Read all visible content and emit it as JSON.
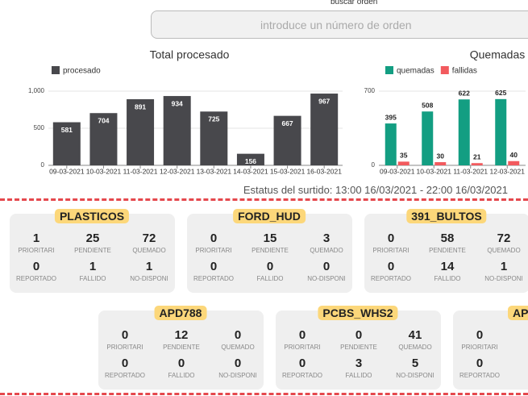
{
  "search": {
    "label": "buscar orden",
    "placeholder": "introduce un número de orden"
  },
  "chart_data": [
    {
      "type": "bar",
      "title": "Total procesado",
      "categories": [
        "09-03-2021",
        "10-03-2021",
        "11-03-2021",
        "12-03-2021",
        "13-03-2021",
        "14-03-2021",
        "15-03-2021",
        "16-03-2021"
      ],
      "series": [
        {
          "name": "procesado",
          "color": "#48484c",
          "values": [
            581,
            704,
            891,
            934,
            725,
            156,
            667,
            967
          ]
        }
      ],
      "ylim": [
        0,
        1000
      ],
      "yticks": [
        0,
        500,
        {
          "value": 1000,
          "label": "1,000"
        }
      ],
      "grid": true
    },
    {
      "type": "bar",
      "title": "Quemadas",
      "categories": [
        "09-03-2021",
        "10-03-2021",
        "11-03-2021",
        "12-03-2021"
      ],
      "series": [
        {
          "name": "quemadas",
          "color": "#139e82",
          "values": [
            395,
            508,
            622,
            625
          ]
        },
        {
          "name": "fallidas",
          "color": "#f25a5e",
          "values": [
            35,
            30,
            21,
            40
          ]
        }
      ],
      "ylim": [
        0,
        700
      ],
      "yticks": [
        0,
        700
      ],
      "grid": true
    }
  ],
  "status": "Estatus del surtido: 13:00 16/03/2021 - 22:00 16/03/2021",
  "cards": [
    {
      "name": "PLASTICOS",
      "rows": [
        [
          {
            "label": "PRIORITARI",
            "value": 1
          },
          {
            "label": "PENDIENTE",
            "value": 25
          },
          {
            "label": "QUEMADO",
            "value": 72
          }
        ],
        [
          {
            "label": "REPORTADO",
            "value": 0
          },
          {
            "label": "FALLIDO",
            "value": 1
          },
          {
            "label": "NO-DISPONI",
            "value": 1
          }
        ]
      ]
    },
    {
      "name": "FORD_HUD",
      "rows": [
        [
          {
            "label": "PRIORITARI",
            "value": 0
          },
          {
            "label": "PENDIENTE",
            "value": 15
          },
          {
            "label": "QUEMADO",
            "value": 3
          }
        ],
        [
          {
            "label": "REPORTADO",
            "value": 0
          },
          {
            "label": "FALLIDO",
            "value": 0
          },
          {
            "label": "NO-DISPONI",
            "value": 0
          }
        ]
      ]
    },
    {
      "name": "391_BULTOS",
      "rows": [
        [
          {
            "label": "PRIORITARI",
            "value": 0
          },
          {
            "label": "PENDIENTE",
            "value": 58
          },
          {
            "label": "QUEMADO",
            "value": 72
          }
        ],
        [
          {
            "label": "REPORTADO",
            "value": 0
          },
          {
            "label": "FALLIDO",
            "value": 14
          },
          {
            "label": "NO-DISPONI",
            "value": 1
          }
        ]
      ]
    },
    {
      "name": "APD788",
      "rows": [
        [
          {
            "label": "PRIORITARI",
            "value": 0
          },
          {
            "label": "PENDIENTE",
            "value": 12
          },
          {
            "label": "QUEMADO",
            "value": 0
          }
        ],
        [
          {
            "label": "REPORTADO",
            "value": 0
          },
          {
            "label": "FALLIDO",
            "value": 0
          },
          {
            "label": "NO-DISPONI",
            "value": 0
          }
        ]
      ]
    },
    {
      "name": "PCBS_WHS2",
      "rows": [
        [
          {
            "label": "PRIORITARI",
            "value": 0
          },
          {
            "label": "PENDIENTE",
            "value": 0
          },
          {
            "label": "QUEMADO",
            "value": 41
          }
        ],
        [
          {
            "label": "REPORTADO",
            "value": 0
          },
          {
            "label": "FALLIDO",
            "value": 3
          },
          {
            "label": "NO-DISPONI",
            "value": 5
          }
        ]
      ]
    },
    {
      "name": "AP",
      "rows": [
        [
          {
            "label": "PRIORITARI",
            "value": 0
          }
        ],
        [
          {
            "label": "REPORTADO",
            "value": 0
          }
        ]
      ]
    }
  ]
}
